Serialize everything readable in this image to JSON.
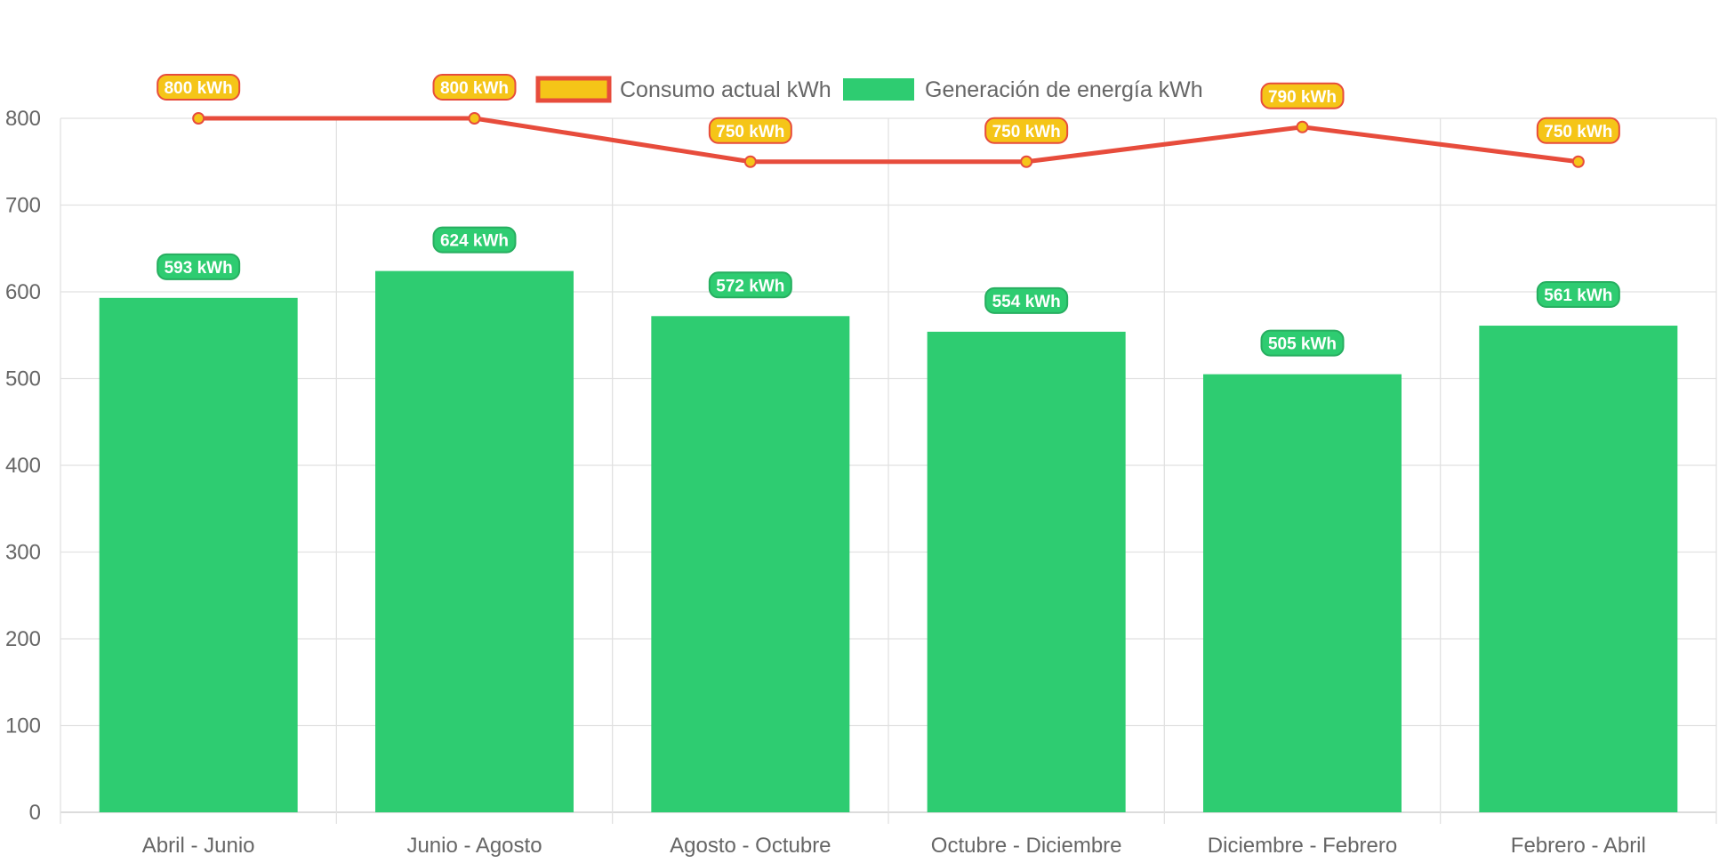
{
  "chart_data": {
    "type": "bar",
    "categories": [
      "Abril - Junio",
      "Junio - Agosto",
      "Agosto - Octubre",
      "Octubre - Diciembre",
      "Diciembre - Febrero",
      "Febrero - Abril"
    ],
    "series": [
      {
        "name": "Consumo actual kWh",
        "type": "line",
        "values": [
          800,
          800,
          750,
          750,
          790,
          750
        ],
        "labels": [
          "800 kWh",
          "800 kWh",
          "750 kWh",
          "750 kWh",
          "790 kWh",
          "750 kWh"
        ],
        "color": "#e74c3c",
        "fill_color": "#f5c518"
      },
      {
        "name": "Generación de energía kWh",
        "type": "bar",
        "values": [
          593,
          624,
          572,
          554,
          505,
          561
        ],
        "labels": [
          "593 kWh",
          "624 kWh",
          "572 kWh",
          "554 kWh",
          "505 kWh",
          "561 kWh"
        ],
        "color": "#2ecc71",
        "label_border": "#27ae60"
      }
    ],
    "y_ticks": [
      "0",
      "100",
      "200",
      "300",
      "400",
      "500",
      "600",
      "700",
      "800"
    ],
    "ylim": [
      0,
      800
    ],
    "grid": true,
    "legend": "top",
    "title": "",
    "xlabel": "",
    "ylabel": ""
  }
}
